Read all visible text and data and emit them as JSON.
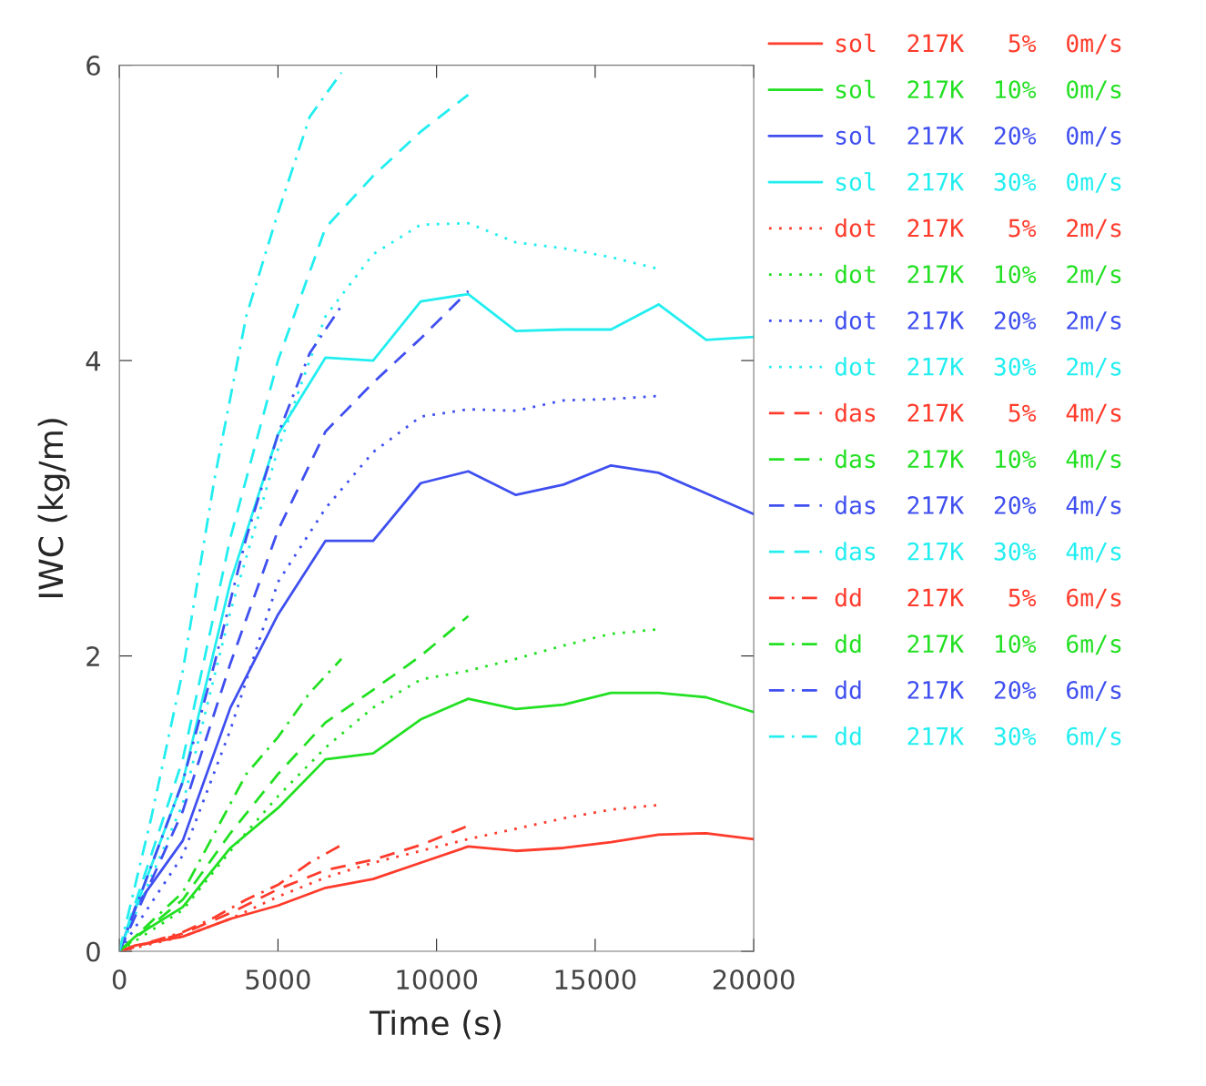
{
  "chart_data": {
    "type": "line",
    "xlabel": "Time (s)",
    "ylabel": "IWC (kg/m)",
    "xlim": [
      0,
      20000
    ],
    "xticks": [
      0,
      5000,
      10000,
      15000,
      20000
    ],
    "ylim": [
      0,
      6
    ],
    "yticks": [
      0,
      2,
      4,
      6
    ],
    "grid": false,
    "legend": "right",
    "marker": "none",
    "series": [
      {
        "name": "sol  217K   5%  0m/s",
        "color": "#ff3b2b",
        "line_style": "solid",
        "x": [
          0,
          500,
          1000,
          2000,
          3500,
          5000,
          6500,
          8000,
          9500,
          11000,
          12500,
          14000,
          15500,
          17000,
          18500,
          20000
        ],
        "values": [
          0,
          0.04,
          0.06,
          0.1,
          0.22,
          0.31,
          0.43,
          0.49,
          0.6,
          0.71,
          0.68,
          0.7,
          0.74,
          0.79,
          0.8,
          0.76
        ]
      },
      {
        "name": "sol  217K  10%  0m/s",
        "color": "#22e022",
        "line_style": "solid",
        "x": [
          0,
          500,
          2000,
          3500,
          5000,
          6500,
          8000,
          9500,
          11000,
          12500,
          14000,
          15500,
          17000,
          18500,
          20000
        ],
        "values": [
          0,
          0.1,
          0.3,
          0.7,
          0.97,
          1.3,
          1.34,
          1.57,
          1.71,
          1.64,
          1.67,
          1.75,
          1.75,
          1.72,
          1.62
        ]
      },
      {
        "name": "sol  217K  20%  0m/s",
        "color": "#3f4ff0",
        "line_style": "solid",
        "x": [
          0,
          500,
          2000,
          3500,
          5000,
          6500,
          8000,
          9500,
          11000,
          12500,
          14000,
          15500,
          17000,
          18500,
          20000
        ],
        "values": [
          0,
          0.3,
          0.75,
          1.65,
          2.28,
          2.78,
          2.78,
          3.17,
          3.25,
          3.09,
          3.16,
          3.29,
          3.24,
          3.1,
          2.96
        ]
      },
      {
        "name": "sol  217K  30%  0m/s",
        "color": "#22eef0",
        "line_style": "solid",
        "x": [
          0,
          2000,
          3500,
          5000,
          6500,
          8000,
          9500,
          11000,
          12500,
          14000,
          15500,
          17000,
          18500,
          20000
        ],
        "values": [
          0,
          1.15,
          2.5,
          3.5,
          4.02,
          4.0,
          4.4,
          4.45,
          4.2,
          4.21,
          4.21,
          4.38,
          4.14,
          4.16
        ]
      },
      {
        "name": "dot  217K   5%  2m/s",
        "color": "#ff3b2b",
        "line_style": "dotted",
        "x": [
          0,
          2000,
          3500,
          5000,
          6500,
          8000,
          9500,
          11000,
          12500,
          14000,
          15500,
          17000
        ],
        "values": [
          0,
          0.1,
          0.22,
          0.37,
          0.5,
          0.6,
          0.68,
          0.76,
          0.83,
          0.9,
          0.96,
          0.99
        ]
      },
      {
        "name": "dot  217K  10%  2m/s",
        "color": "#22e022",
        "line_style": "dotted",
        "x": [
          0,
          2000,
          3500,
          5000,
          6500,
          8000,
          9500,
          11000,
          12500,
          14000,
          15500,
          17000
        ],
        "values": [
          0,
          0.28,
          0.68,
          1.05,
          1.38,
          1.65,
          1.84,
          1.9,
          1.98,
          2.07,
          2.15,
          2.18
        ]
      },
      {
        "name": "dot  217K  20%  2m/s",
        "color": "#3f4ff0",
        "line_style": "dotted",
        "x": [
          0,
          2000,
          3500,
          5000,
          6500,
          8000,
          9500,
          11000,
          12500,
          14000,
          15500,
          17000
        ],
        "values": [
          0,
          0.65,
          1.5,
          2.5,
          3.0,
          3.38,
          3.62,
          3.67,
          3.66,
          3.73,
          3.74,
          3.76
        ]
      },
      {
        "name": "dot  217K  30%  2m/s",
        "color": "#22eef0",
        "line_style": "dotted",
        "x": [
          0,
          2000,
          3500,
          5000,
          6500,
          8000,
          9500,
          11000,
          12500,
          14000,
          15500,
          17000
        ],
        "values": [
          0,
          1.0,
          2.3,
          3.4,
          4.3,
          4.72,
          4.92,
          4.93,
          4.8,
          4.76,
          4.7,
          4.62
        ]
      },
      {
        "name": "das  217K   5%  4m/s",
        "color": "#ff3b2b",
        "line_style": "dashed",
        "x": [
          0,
          2000,
          3500,
          5000,
          6500,
          8000,
          9500,
          11000
        ],
        "values": [
          0,
          0.12,
          0.26,
          0.42,
          0.55,
          0.62,
          0.72,
          0.85
        ]
      },
      {
        "name": "das  217K  10%  4m/s",
        "color": "#22e022",
        "line_style": "dashed",
        "x": [
          0,
          2000,
          3500,
          5000,
          6500,
          8000,
          9500,
          11000
        ],
        "values": [
          0,
          0.35,
          0.8,
          1.2,
          1.55,
          1.77,
          2.0,
          2.27
        ]
      },
      {
        "name": "das  217K  20%  4m/s",
        "color": "#3f4ff0",
        "line_style": "dashed",
        "x": [
          0,
          2000,
          3500,
          5000,
          6500,
          8000,
          9500,
          11000
        ],
        "values": [
          0,
          0.95,
          1.95,
          2.85,
          3.52,
          3.85,
          4.15,
          4.47
        ]
      },
      {
        "name": "das  217K  30%  4m/s",
        "color": "#22eef0",
        "line_style": "dashed",
        "x": [
          0,
          2000,
          3500,
          5000,
          6500,
          8000,
          9500,
          11000
        ],
        "values": [
          0,
          1.3,
          2.8,
          4.0,
          4.9,
          5.25,
          5.55,
          5.8
        ]
      },
      {
        "name": "dd   217K   5%  6m/s",
        "color": "#ff3b2b",
        "line_style": "dashdot",
        "x": [
          0,
          2000,
          3000,
          4000,
          5000,
          6000,
          7000
        ],
        "values": [
          0,
          0.13,
          0.23,
          0.35,
          0.45,
          0.6,
          0.72
        ]
      },
      {
        "name": "dd   217K  10%  6m/s",
        "color": "#22e022",
        "line_style": "dashdot",
        "x": [
          0,
          1000,
          2000,
          3000,
          4000,
          5000,
          6000,
          7000
        ],
        "values": [
          0,
          0.2,
          0.4,
          0.8,
          1.2,
          1.45,
          1.75,
          1.98
        ]
      },
      {
        "name": "dd   217K  20%  6m/s",
        "color": "#3f4ff0",
        "line_style": "dashdot",
        "x": [
          0,
          2000,
          3000,
          4000,
          5000,
          6000,
          7000
        ],
        "values": [
          0,
          1.15,
          1.95,
          2.8,
          3.5,
          4.05,
          4.37
        ]
      },
      {
        "name": "dd   217K  30%  6m/s",
        "color": "#22eef0",
        "line_style": "dashdot",
        "x": [
          0,
          1000,
          2000,
          3000,
          4000,
          5000,
          6000,
          7000
        ],
        "values": [
          0,
          0.9,
          1.9,
          3.2,
          4.3,
          5.0,
          5.65,
          5.95
        ]
      }
    ]
  }
}
